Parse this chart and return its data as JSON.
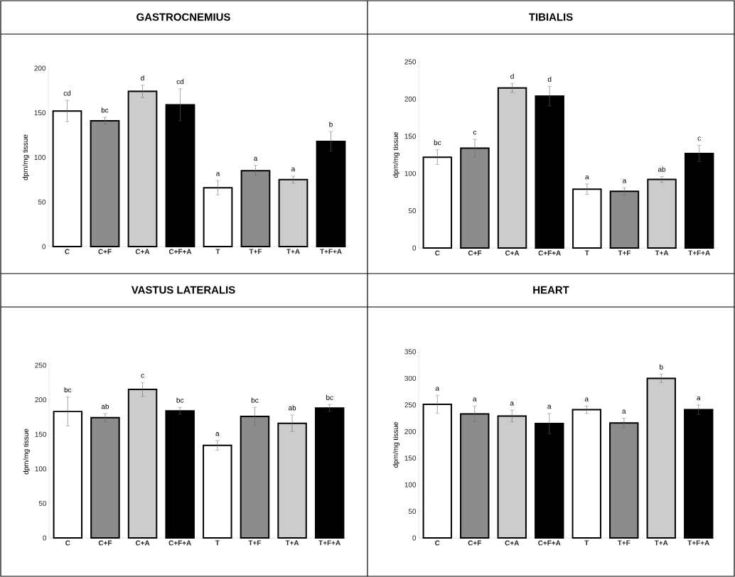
{
  "chart_data": [
    {
      "type": "bar",
      "title": "GASTROCNEMIUS",
      "ylabel": "dpm/mg tissue",
      "categories": [
        "C",
        "C+F",
        "C+A",
        "C+F+A",
        "T",
        "T+F",
        "T+A",
        "T+F+A"
      ],
      "values": [
        152,
        141,
        174,
        159,
        66,
        85,
        75,
        118
      ],
      "errors": [
        12,
        4,
        7,
        18,
        8,
        6,
        4,
        11
      ],
      "colors": [
        "#ffffff",
        "#8c8c8c",
        "#cccccc",
        "#000000",
        "#ffffff",
        "#8c8c8c",
        "#cccccc",
        "#000000"
      ],
      "ylim": [
        0,
        200
      ],
      "yticks": [
        0,
        50,
        100,
        150,
        200
      ],
      "value_labels": [
        "cd",
        "bc",
        "d",
        "cd",
        "a",
        "a",
        "a",
        "b"
      ]
    },
    {
      "type": "bar",
      "title": "TIBIALIS",
      "ylabel": "dpm/mg tissue",
      "categories": [
        "C",
        "C+F",
        "C+A",
        "C+F+A",
        "T",
        "T+F",
        "T+A",
        "T+F+A"
      ],
      "values": [
        122,
        134,
        215,
        204,
        79,
        76,
        92,
        127
      ],
      "errors": [
        10,
        12,
        6,
        13,
        7,
        5,
        4,
        11
      ],
      "colors": [
        "#ffffff",
        "#8c8c8c",
        "#cccccc",
        "#000000",
        "#ffffff",
        "#8c8c8c",
        "#cccccc",
        "#000000"
      ],
      "ylim": [
        0,
        250
      ],
      "yticks": [
        0,
        50,
        100,
        150,
        200,
        250
      ],
      "value_labels": [
        "bc",
        "c",
        "d",
        "d",
        "a",
        "a",
        "ab",
        "c"
      ]
    },
    {
      "type": "bar",
      "title": "VASTUS LATERALIS",
      "ylabel": "dpm/mg tissue",
      "categories": [
        "C",
        "C+F",
        "C+A",
        "C+F+A",
        "T",
        "T+F",
        "T+A",
        "T+F+A"
      ],
      "values": [
        183,
        174,
        215,
        184,
        134,
        176,
        166,
        188
      ],
      "errors": [
        21,
        6,
        10,
        5,
        7,
        13,
        12,
        5
      ],
      "colors": [
        "#ffffff",
        "#8c8c8c",
        "#cccccc",
        "#000000",
        "#ffffff",
        "#8c8c8c",
        "#cccccc",
        "#000000"
      ],
      "ylim": [
        0,
        250
      ],
      "yticks": [
        0,
        50,
        100,
        150,
        200,
        250
      ],
      "value_labels": [
        "bc",
        "ab",
        "c",
        "bc",
        "a",
        "bc",
        "ab",
        "bc"
      ]
    },
    {
      "type": "bar",
      "title": "HEART",
      "ylabel": "dpm/mg tissue",
      "categories": [
        "C",
        "C+F",
        "C+A",
        "C+F+A",
        "T",
        "T+F",
        "T+A",
        "T+F+A"
      ],
      "values": [
        251,
        233,
        229,
        215,
        241,
        216,
        300,
        241
      ],
      "errors": [
        17,
        15,
        11,
        19,
        7,
        9,
        8,
        9
      ],
      "colors": [
        "#ffffff",
        "#8c8c8c",
        "#cccccc",
        "#000000",
        "#ffffff",
        "#8c8c8c",
        "#cccccc",
        "#000000"
      ],
      "ylim": [
        0,
        350
      ],
      "yticks": [
        0,
        50,
        100,
        150,
        200,
        250,
        300,
        350
      ],
      "value_labels": [
        "a",
        "a",
        "a",
        "a",
        "a",
        "a",
        "b",
        "a"
      ]
    }
  ]
}
